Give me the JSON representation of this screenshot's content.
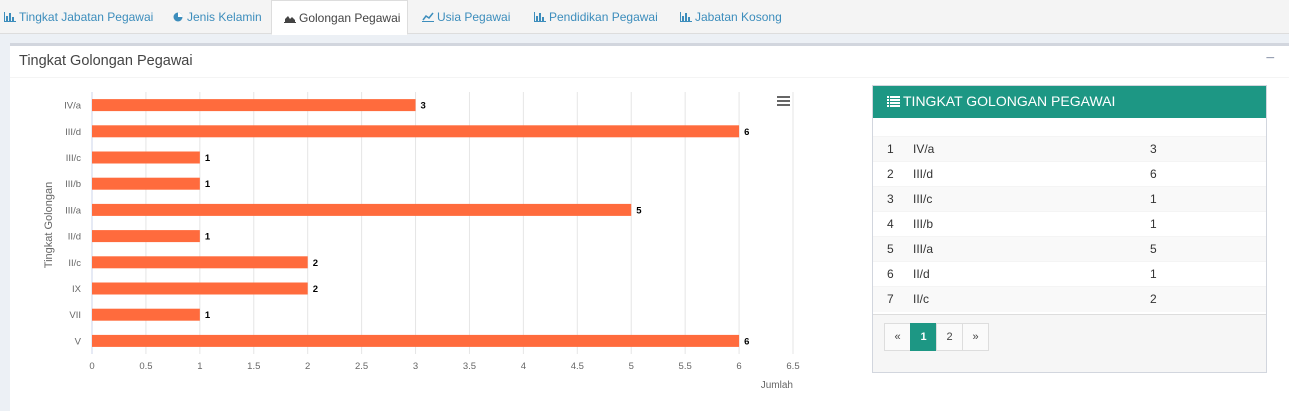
{
  "tabs": [
    {
      "label": "Tingkat Jabatan Pegawai",
      "icon": "bar-chart-icon"
    },
    {
      "label": "Jenis Kelamin",
      "icon": "pie-chart-icon"
    },
    {
      "label": "Golongan Pegawai",
      "icon": "area-chart-icon"
    },
    {
      "label": "Usia Pegawai",
      "icon": "line-chart-icon"
    },
    {
      "label": "Pendidikan Pegawai",
      "icon": "bar-chart-icon"
    },
    {
      "label": "Jabatan Kosong",
      "icon": "bar-chart-icon"
    }
  ],
  "panel": {
    "title": "Tingkat Golongan Pegawai",
    "collapse": "−"
  },
  "table_box": {
    "title": "TINGKAT GOLONGAN PEGAWAI",
    "rows": [
      {
        "no": "1",
        "gol": "IV/a",
        "jumlah": "3"
      },
      {
        "no": "2",
        "gol": "III/d",
        "jumlah": "6"
      },
      {
        "no": "3",
        "gol": "III/c",
        "jumlah": "1"
      },
      {
        "no": "4",
        "gol": "III/b",
        "jumlah": "1"
      },
      {
        "no": "5",
        "gol": "III/a",
        "jumlah": "5"
      },
      {
        "no": "6",
        "gol": "II/d",
        "jumlah": "1"
      },
      {
        "no": "7",
        "gol": "II/c",
        "jumlah": "2"
      }
    ],
    "pager": {
      "prev": "«",
      "pages": [
        "1",
        "2"
      ],
      "next": "»"
    }
  },
  "colors": {
    "bar": "#ff6b3d",
    "header": "#1d9784",
    "tab_link": "#3c8dbc"
  },
  "chart_data": {
    "type": "bar",
    "orientation": "horizontal",
    "categories": [
      "IV/a",
      "III/d",
      "III/c",
      "III/b",
      "III/a",
      "II/d",
      "II/c",
      "IX",
      "VII",
      "V"
    ],
    "values": [
      3,
      6,
      1,
      1,
      5,
      1,
      2,
      2,
      1,
      6
    ],
    "xlabel": "Jumlah",
    "ylabel": "Tingkat Golongan",
    "xticks": [
      "0",
      "0.5",
      "1",
      "1.5",
      "2",
      "2.5",
      "3",
      "3.5",
      "4",
      "4.5",
      "5",
      "5.5",
      "6",
      "6.5"
    ],
    "xlim": [
      0,
      6.5
    ],
    "grid": true,
    "data_labels": true
  }
}
